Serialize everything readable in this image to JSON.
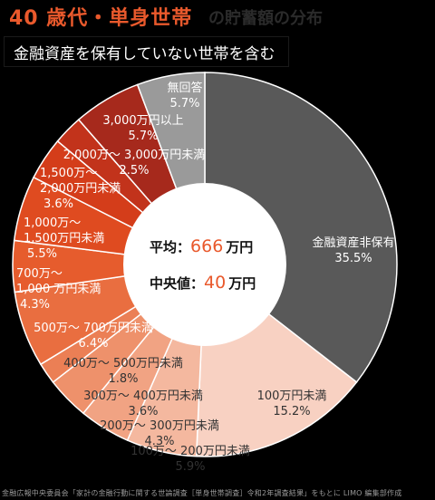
{
  "header": {
    "title": "40 歳代・単身世帯",
    "title_tail": "の貯蓄額の分布",
    "subtitle": "金融資産を保有していない世帯を含む"
  },
  "center": {
    "avg_label": "平均：",
    "avg_value": "666",
    "avg_unit": "万円",
    "median_label": "中央値：",
    "median_value": "40",
    "median_unit": "万円"
  },
  "source": "金融広報中央委員会「家計の金融行動に関する世論調査［単身世帯調査］令和2年調査結果」をもとに LIMO 編集部作成",
  "colors": {
    "background": "#000000",
    "accent": "#e9592c",
    "highlight_value": "#e9592c"
  },
  "chart_data": {
    "type": "pie",
    "style": "donut",
    "start": "12 o'clock",
    "direction": "clockwise",
    "slices": [
      {
        "label": [
          "金融資産非保有"
        ],
        "value_text": "35.5%",
        "value": 35.5,
        "color": "#595959"
      },
      {
        "label": [
          "100万円未満"
        ],
        "value_text": "15.2%",
        "value": 15.2,
        "color": "#f8d1c2"
      },
      {
        "label": [
          "100万～ 200万円未満"
        ],
        "value_text": "5.9%",
        "value": 5.9,
        "color": "#f4b89f"
      },
      {
        "label": [
          "200万～ 300万円未満"
        ],
        "value_text": "4.3%",
        "value": 4.3,
        "color": "#f1a383"
      },
      {
        "label": [
          "300万～ 400万円未満"
        ],
        "value_text": "3.6%",
        "value": 3.6,
        "color": "#ee916b"
      },
      {
        "label": [
          "400万～ 500万円未満"
        ],
        "value_text": "1.8%",
        "value": 1.8,
        "color": "#eb7f55"
      },
      {
        "label": [
          "500万～ 700万円未満"
        ],
        "value_text": "6.4%",
        "value": 6.4,
        "color": "#e96e40"
      },
      {
        "label": [
          "700万～",
          "1,000 万円未満"
        ],
        "value_text": "4.3%",
        "value": 4.3,
        "color": "#e65c2d"
      },
      {
        "label": [
          "1,000万～",
          "1,500万円未満"
        ],
        "value_text": "5.5%",
        "value": 5.5,
        "color": "#df4b20"
      },
      {
        "label": [
          "1,500万～",
          "2,000万円未満"
        ],
        "value_text": "3.6%",
        "value": 3.6,
        "color": "#d43d1a"
      },
      {
        "label": [
          "2,000万～ 3,000万円未満"
        ],
        "value_text": "2.5%",
        "value": 2.5,
        "color": "#c2331b"
      },
      {
        "label": [
          "3,000万円以上"
        ],
        "value_text": "5.7%",
        "value": 5.7,
        "color": "#a6291c"
      },
      {
        "label": [
          "無回答"
        ],
        "value_text": "5.7%",
        "value": 5.7,
        "color": "#9a9a9a"
      }
    ]
  }
}
